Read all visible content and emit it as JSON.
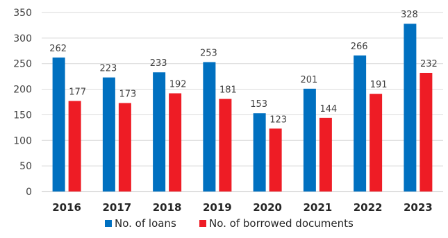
{
  "chart_data": {
    "type": "bar",
    "categories": [
      "2016",
      "2017",
      "2018",
      "2019",
      "2020",
      "2021",
      "2022",
      "2023"
    ],
    "series": [
      {
        "name": "No. of loans",
        "color": "#0070C0",
        "values": [
          262,
          223,
          233,
          253,
          153,
          201,
          266,
          328
        ]
      },
      {
        "name": "No. of borrowed documents",
        "color": "#EE1C25",
        "values": [
          177,
          173,
          192,
          181,
          123,
          144,
          191,
          232
        ]
      }
    ],
    "ylim": [
      0,
      350
    ],
    "yticks": [
      0,
      50,
      100,
      150,
      200,
      250,
      300,
      350
    ],
    "grid": true,
    "legend": "bottom",
    "data_labels": true
  }
}
